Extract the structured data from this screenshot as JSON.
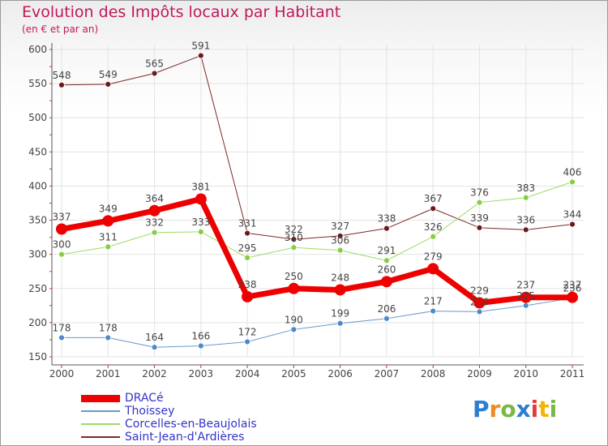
{
  "title": "Evolution des Impôts locaux par Habitant",
  "subtitle": "(en € et par an)",
  "chart_data": {
    "type": "line",
    "title": "Evolution des Impôts locaux par Habitant",
    "subtitle": "(en € et par an)",
    "xlabel": "",
    "ylabel": "",
    "x": [
      "2000",
      "2001",
      "2002",
      "2003",
      "2004",
      "2005",
      "2006",
      "2007",
      "2008",
      "2009",
      "2010",
      "2011"
    ],
    "ylim": [
      150,
      600
    ],
    "yticks": [
      150,
      200,
      250,
      300,
      350,
      400,
      450,
      500,
      550,
      600
    ],
    "series": [
      {
        "name": "Saint-Jean-d'Ardières",
        "color": "#7a2a2a",
        "marker": "#6b1a1a",
        "width": 1,
        "values": [
          548,
          549,
          565,
          591,
          331,
          322,
          327,
          338,
          367,
          339,
          336,
          344
        ]
      },
      {
        "name": "Corcelles-en-Beaujolais",
        "color": "#99dd66",
        "marker": "#88cc44",
        "width": 1,
        "values": [
          300,
          311,
          332,
          333,
          295,
          310,
          306,
          291,
          326,
          376,
          383,
          406
        ]
      },
      {
        "name": "Thoissey",
        "color": "#6699cc",
        "marker": "#4d88cc",
        "width": 1,
        "values": [
          178,
          178,
          164,
          166,
          172,
          190,
          199,
          206,
          217,
          216,
          225,
          236
        ]
      },
      {
        "name": "DRACé",
        "color": "#ee0000",
        "marker": "#ee0000",
        "width": 7,
        "values": [
          337,
          349,
          364,
          381,
          238,
          250,
          248,
          260,
          279,
          229,
          237,
          237
        ]
      }
    ],
    "legend": [
      "DRACé",
      "Thoissey",
      "Corcelles-en-Beaujolais",
      "Saint-Jean-d'Ardières"
    ],
    "legend_position": "bottom-left"
  },
  "logo": {
    "p": "P",
    "r": "r",
    "o": "o",
    "x": "x",
    "i": "i",
    "t": "t",
    "i2": "i"
  }
}
